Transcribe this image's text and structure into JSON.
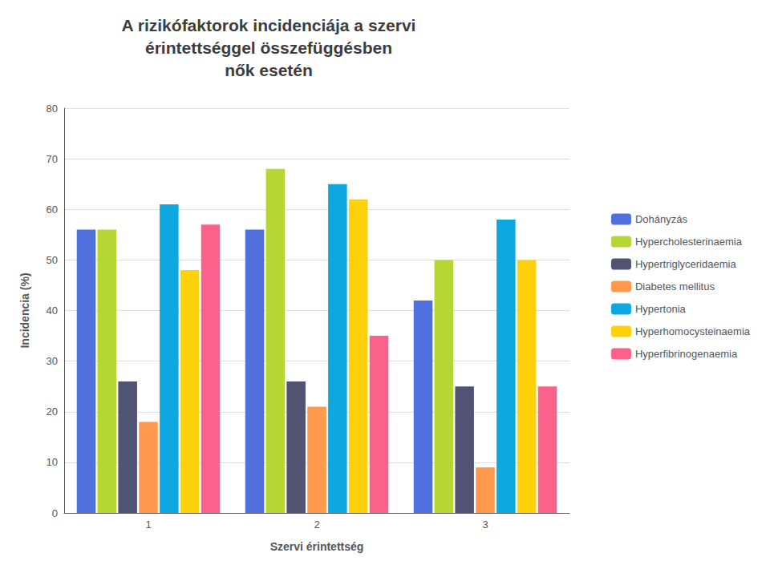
{
  "chart_data": {
    "type": "bar",
    "title": "A rizikófaktorok incidenciája a szervi\nérintettséggel összefüggésben\nnők esetén",
    "x_label": "Szervi érintettség",
    "y_label": "Incidencia (%)",
    "categories": [
      "1",
      "2",
      "3"
    ],
    "series": [
      {
        "name": "Dohányzás",
        "values": [
          56,
          56,
          42
        ]
      },
      {
        "name": "Hypercholesterinaemia",
        "values": [
          56,
          68,
          50
        ]
      },
      {
        "name": "Hypertriglyceridaemia",
        "values": [
          26,
          26,
          25
        ]
      },
      {
        "name": "Diabetes mellitus",
        "values": [
          18,
          21,
          9
        ]
      },
      {
        "name": "Hypertonia",
        "values": [
          61,
          65,
          58
        ]
      },
      {
        "name": "Hyperhomocysteinaemia",
        "values": [
          48,
          62,
          50
        ]
      },
      {
        "name": "Hyperfibrinogenaemia",
        "values": [
          57,
          35,
          25
        ]
      }
    ],
    "ylim": [
      0,
      80
    ],
    "yticks": [
      0,
      10,
      20,
      30,
      40,
      50,
      60,
      70,
      80
    ],
    "grid": true,
    "legend": "right"
  }
}
